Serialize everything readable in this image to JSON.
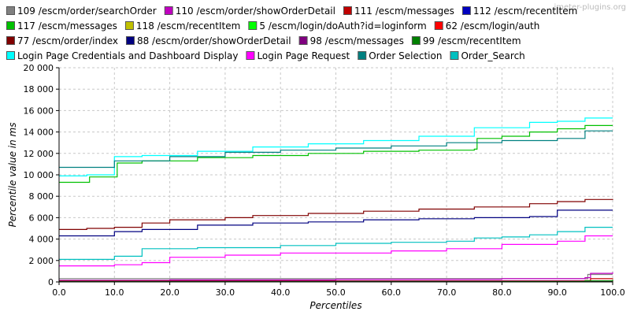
{
  "watermark": "jmeter-plugins.org",
  "chart_data": {
    "type": "line",
    "xlabel": "Percentiles",
    "ylabel": "Percentile value in ms",
    "xlim": [
      0,
      100
    ],
    "ylim": [
      0,
      20000
    ],
    "xticks": [
      "0.0",
      "10.0",
      "20.0",
      "30.0",
      "40.0",
      "50.0",
      "60.0",
      "70.0",
      "80.0",
      "90.0",
      "100.0"
    ],
    "yticks": [
      "0",
      "2 000",
      "4 000",
      "6 000",
      "8 000",
      "10 000",
      "12 000",
      "14 000",
      "16 000",
      "18 000",
      "20 000"
    ],
    "grid": true,
    "legend_position": "top",
    "series": [
      {
        "name": "109 /escm/order/searchOrder",
        "color": "#808080",
        "x": [
          0,
          95,
          95.5,
          100
        ],
        "y": [
          300,
          300,
          700,
          700
        ]
      },
      {
        "name": "110 /escm/order/showOrderDetail",
        "color": "#c000c0",
        "x": [
          0,
          20,
          50,
          80,
          95,
          96,
          100
        ],
        "y": [
          150,
          200,
          250,
          300,
          400,
          800,
          900
        ]
      },
      {
        "name": "111 /escm/messages",
        "color": "#c00000",
        "x": [
          0,
          95,
          96,
          100
        ],
        "y": [
          100,
          120,
          300,
          350
        ]
      },
      {
        "name": "112 /escm/recentItem",
        "color": "#0000c0",
        "x": [
          0,
          95,
          100
        ],
        "y": [
          50,
          50,
          100
        ]
      },
      {
        "name": "117 /escm/messages",
        "color": "#00c000",
        "x": [
          0,
          5,
          5.5,
          10,
          10.5,
          15,
          25,
          35,
          45,
          55,
          65,
          75,
          75.5,
          80,
          85,
          90,
          95,
          100
        ],
        "y": [
          9300,
          9300,
          9800,
          9800,
          11100,
          11300,
          11600,
          11800,
          12000,
          12200,
          12300,
          12400,
          13400,
          13600,
          14000,
          14300,
          14600,
          14600
        ]
      },
      {
        "name": "118 /escm/recentItem",
        "color": "#c0c000",
        "x": [
          0,
          100
        ],
        "y": [
          20,
          30
        ]
      },
      {
        "name": "5 /escm/login/doAuth?id=loginform",
        "color": "#00ff00",
        "x": [
          0,
          95,
          100
        ],
        "y": [
          30,
          50,
          120
        ]
      },
      {
        "name": "62 /escm/login/auth",
        "color": "#ff0000",
        "x": [
          0,
          100
        ],
        "y": [
          20,
          30
        ]
      },
      {
        "name": "77 /escm/order/index",
        "color": "#800000",
        "x": [
          0,
          5,
          10,
          15,
          20,
          30,
          35,
          45,
          55,
          65,
          75,
          85,
          90,
          95,
          100
        ],
        "y": [
          4900,
          5000,
          5100,
          5500,
          5800,
          6000,
          6200,
          6400,
          6600,
          6800,
          7000,
          7300,
          7500,
          7700,
          7750
        ]
      },
      {
        "name": "88 /escm/order/showOrderDetail",
        "color": "#000080",
        "x": [
          0,
          5,
          10,
          15,
          25,
          35,
          45,
          55,
          65,
          75,
          85,
          90,
          100
        ],
        "y": [
          4300,
          4300,
          4700,
          4900,
          5300,
          5500,
          5600,
          5800,
          5900,
          6000,
          6100,
          6700,
          6700
        ]
      },
      {
        "name": "98 /escm/messages",
        "color": "#800080",
        "x": [
          0,
          95,
          100
        ],
        "y": [
          40,
          60,
          150
        ]
      },
      {
        "name": "99 /escm/recentItem",
        "color": "#008000",
        "x": [
          0,
          80,
          95,
          100
        ],
        "y": [
          20,
          30,
          100,
          200
        ]
      },
      {
        "name": "Login Page Credentials and Dashboard Display",
        "color": "#00ffff",
        "x": [
          0,
          5,
          10,
          15,
          25,
          35,
          45,
          55,
          65,
          75,
          80,
          85,
          90,
          95,
          100
        ],
        "y": [
          9900,
          10000,
          11700,
          11800,
          12200,
          12600,
          12900,
          13200,
          13600,
          14400,
          14400,
          14900,
          15000,
          15300,
          15300
        ]
      },
      {
        "name": "Login Page Request",
        "color": "#ff00ff",
        "x": [
          0,
          10,
          15,
          20,
          30,
          40,
          50,
          60,
          70,
          80,
          90,
          95,
          100
        ],
        "y": [
          1500,
          1600,
          1800,
          2300,
          2500,
          2700,
          2700,
          2900,
          3100,
          3500,
          3800,
          4300,
          4300
        ]
      },
      {
        "name": "Order Selection",
        "color": "#008080",
        "x": [
          0,
          5,
          10,
          20,
          30,
          40,
          50,
          60,
          70,
          80,
          90,
          95,
          100
        ],
        "y": [
          10700,
          10700,
          11300,
          11700,
          12100,
          12300,
          12500,
          12700,
          13000,
          13200,
          13400,
          14100,
          14100
        ]
      },
      {
        "name": "Order_Search",
        "color": "#00c0c0",
        "x": [
          0,
          10,
          15,
          25,
          40,
          50,
          60,
          70,
          75,
          80,
          85,
          90,
          95,
          100
        ],
        "y": [
          2100,
          2400,
          3100,
          3200,
          3400,
          3600,
          3700,
          3800,
          4100,
          4200,
          4400,
          4700,
          5100,
          5100
        ]
      }
    ]
  }
}
